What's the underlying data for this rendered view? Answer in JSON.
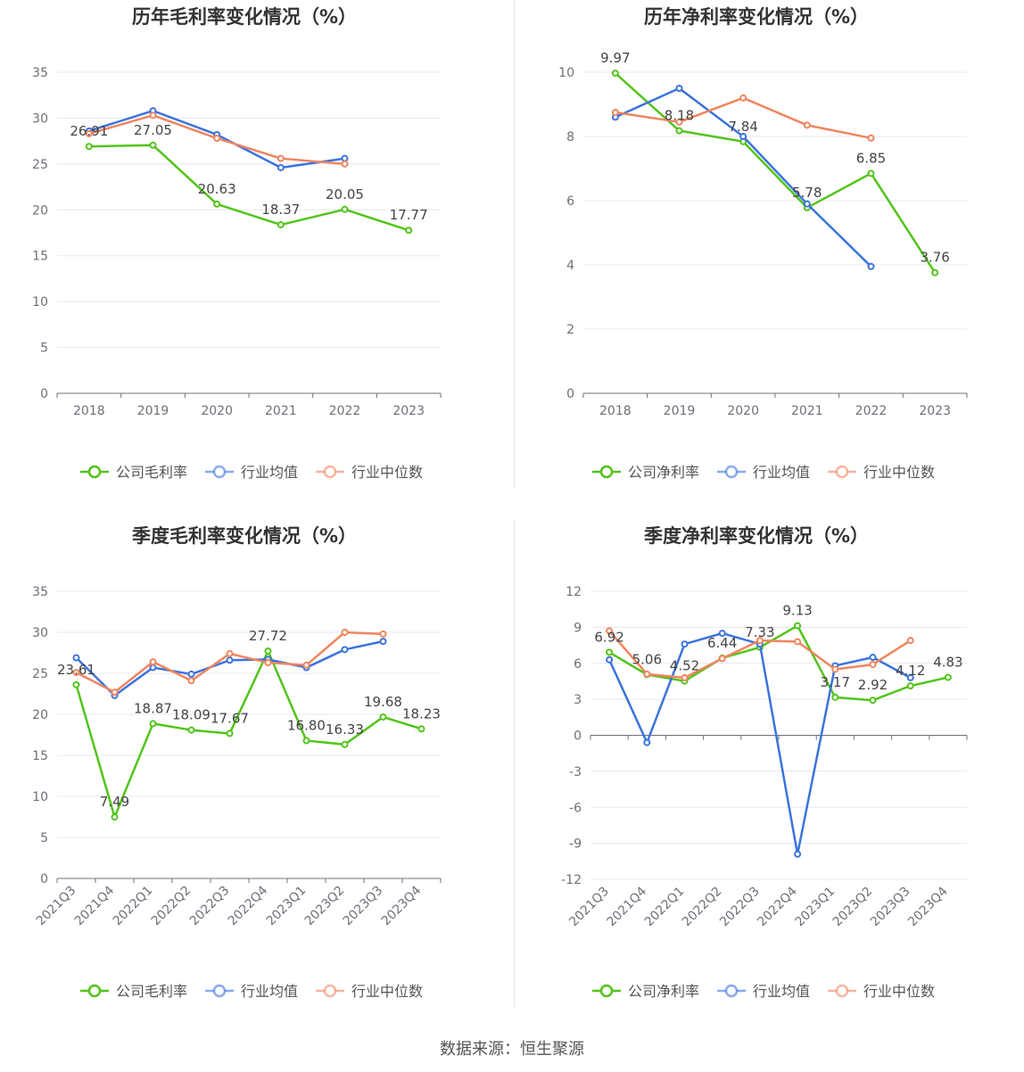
{
  "source": "数据来源：恒生聚源",
  "colors": {
    "company": "#52c41a",
    "avg": "#3b73de",
    "median": "#f0845f"
  },
  "chart_data": [
    {
      "type": "line",
      "title": "历年毛利率变化情况（%）",
      "categories": [
        "2018",
        "2019",
        "2020",
        "2021",
        "2022",
        "2023"
      ],
      "ylim": [
        0,
        35
      ],
      "yticks": [
        "0",
        "5",
        "10",
        "15",
        "20",
        "25",
        "30",
        "35"
      ],
      "grid": true,
      "legend_position": "bottom-center",
      "series": [
        {
          "name": "公司毛利率",
          "values": [
            26.91,
            27.05,
            20.63,
            18.37,
            20.05,
            17.77
          ],
          "labels": [
            "26.91",
            "27.05",
            "20.63",
            "18.37",
            "20.05",
            "17.77"
          ]
        },
        {
          "name": "行业均值",
          "values": [
            28.6,
            30.8,
            28.2,
            24.6,
            25.6,
            null
          ]
        },
        {
          "name": "行业中位数",
          "values": [
            28.3,
            30.3,
            27.8,
            25.6,
            25.0,
            null
          ]
        }
      ]
    },
    {
      "type": "line",
      "title": "历年净利率变化情况（%）",
      "categories": [
        "2018",
        "2019",
        "2020",
        "2021",
        "2022",
        "2023"
      ],
      "ylim": [
        0,
        10
      ],
      "yticks": [
        "0",
        "2",
        "4",
        "6",
        "8",
        "10"
      ],
      "grid": true,
      "legend_position": "bottom-center",
      "series": [
        {
          "name": "公司净利率",
          "values": [
            9.97,
            8.18,
            7.84,
            5.78,
            6.85,
            3.76
          ],
          "labels": [
            "9.97",
            "8.18",
            "7.84",
            "5.78",
            "6.85",
            "3.76"
          ]
        },
        {
          "name": "行业均值",
          "values": [
            8.6,
            9.5,
            8.0,
            5.9,
            3.95,
            null
          ]
        },
        {
          "name": "行业中位数",
          "values": [
            8.75,
            8.45,
            9.2,
            8.35,
            7.95,
            null
          ]
        }
      ]
    },
    {
      "type": "line",
      "title": "季度毛利率变化情况（%）",
      "categories": [
        "2021Q3",
        "2021Q4",
        "2022Q1",
        "2022Q2",
        "2022Q3",
        "2022Q4",
        "2023Q1",
        "2023Q2",
        "2023Q3",
        "2023Q4"
      ],
      "ylim": [
        0,
        35
      ],
      "yticks": [
        "0",
        "5",
        "10",
        "15",
        "20",
        "25",
        "30",
        "35"
      ],
      "grid": true,
      "legend_position": "bottom-center",
      "series": [
        {
          "name": "公司毛利率",
          "values": [
            23.61,
            7.49,
            18.87,
            18.09,
            17.67,
            27.72,
            16.8,
            16.33,
            19.68,
            18.23
          ],
          "labels": [
            "23.61",
            "7.49",
            "18.87",
            "18.09",
            "17.67",
            "27.72",
            "16.80",
            "16.33",
            "19.68",
            "18.23"
          ]
        },
        {
          "name": "行业均值",
          "values": [
            26.9,
            22.3,
            25.7,
            24.9,
            26.6,
            26.7,
            25.7,
            27.9,
            28.9,
            null
          ]
        },
        {
          "name": "行业中位数",
          "values": [
            25.1,
            22.7,
            26.4,
            24.1,
            27.4,
            26.3,
            26.0,
            30.0,
            29.8,
            null
          ]
        }
      ]
    },
    {
      "type": "line",
      "title": "季度净利率变化情况（%）",
      "categories": [
        "2021Q3",
        "2021Q4",
        "2022Q1",
        "2022Q2",
        "2022Q3",
        "2022Q4",
        "2023Q1",
        "2023Q2",
        "2023Q3",
        "2023Q4"
      ],
      "ylim": [
        -12,
        12
      ],
      "yticks": [
        "-12",
        "-9",
        "-6",
        "-3",
        "0",
        "3",
        "6",
        "9",
        "12"
      ],
      "grid": true,
      "legend_position": "bottom-center",
      "series": [
        {
          "name": "公司净利率",
          "values": [
            6.92,
            5.06,
            4.52,
            6.44,
            7.33,
            9.13,
            3.17,
            2.92,
            4.12,
            4.83
          ],
          "labels": [
            "6.92",
            "5.06",
            "4.52",
            "6.44",
            "7.33",
            "9.13",
            "3.17",
            "2.92",
            "4.12",
            "4.83"
          ]
        },
        {
          "name": "行业均值",
          "values": [
            6.3,
            -0.6,
            7.6,
            8.5,
            7.6,
            -9.9,
            5.8,
            6.5,
            4.8,
            null
          ]
        },
        {
          "name": "行业中位数",
          "values": [
            8.7,
            5.1,
            4.8,
            6.4,
            7.9,
            7.8,
            5.5,
            5.9,
            7.9,
            null
          ]
        }
      ]
    }
  ]
}
